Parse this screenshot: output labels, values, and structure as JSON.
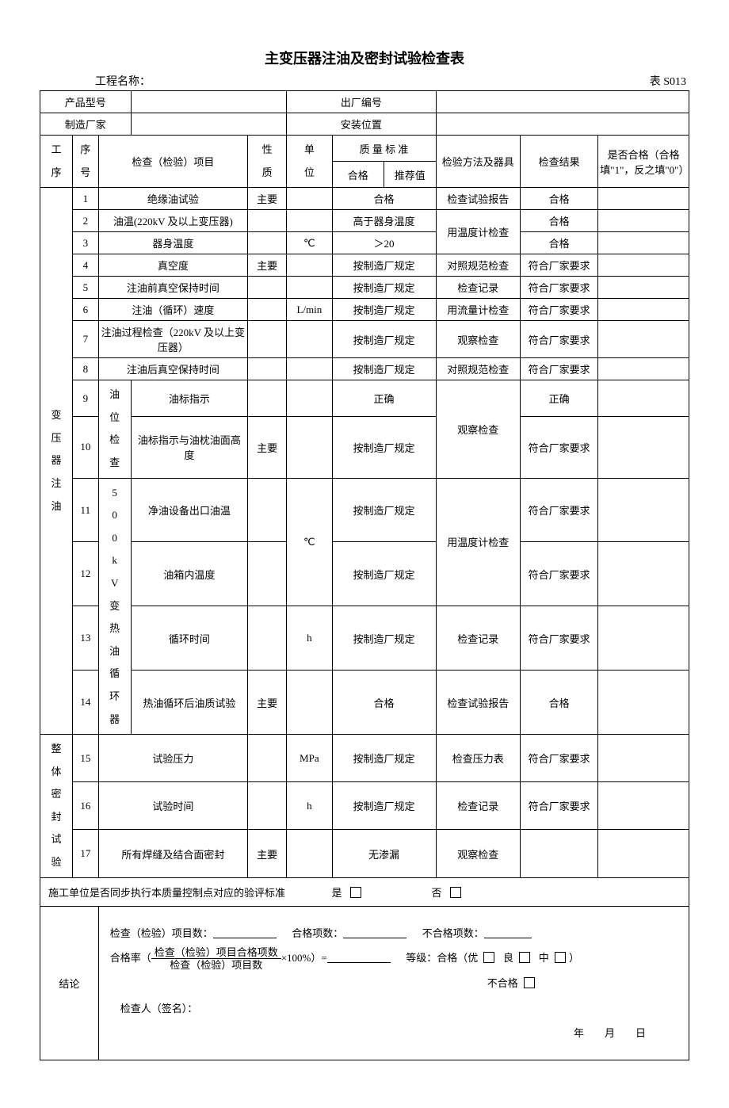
{
  "title": "主变压器注油及密封试验检查表",
  "meta": {
    "project_label": "工程名称：",
    "table_no": "表 S013"
  },
  "header": {
    "product_model": "产品型号",
    "factory_no": "出厂编号",
    "manufacturer": "制造厂家",
    "install_pos": "安装位置",
    "proc": "工序",
    "seq": "序号",
    "item": "检查（检验）项目",
    "nature": "性质",
    "unit": "单位",
    "std": "质 量 标 准",
    "std_pass": "合格",
    "std_rec": "推荐值",
    "method": "检验方法及器具",
    "result": "检查结果",
    "pass": "是否合格（合格填\"1\"，反之填\"0\"）"
  },
  "groups": {
    "g1": "变压器注油",
    "g2": "整体密封试验",
    "sub_oil": "油位检查",
    "sub_500": "500kV变热油循环器"
  },
  "rows": [
    {
      "n": "1",
      "item": "绝缘油试验",
      "nat": "主要",
      "unit": "",
      "std": "合格",
      "method": "检查试验报告",
      "res": "合格"
    },
    {
      "n": "2",
      "item": "油温(220kV 及以上变压器)",
      "nat": "",
      "unit": "",
      "std": "高于器身温度",
      "method": "用温度计检查",
      "res": "合格"
    },
    {
      "n": "3",
      "item": "器身温度",
      "nat": "",
      "unit": "℃",
      "std": "＞20",
      "method": "",
      "res": "合格"
    },
    {
      "n": "4",
      "item": "真空度",
      "nat": "主要",
      "unit": "",
      "std": "按制造厂规定",
      "method": "对照规范检查",
      "res": "符合厂家要求"
    },
    {
      "n": "5",
      "item": "注油前真空保持时间",
      "nat": "",
      "unit": "",
      "std": "按制造厂规定",
      "method": "检查记录",
      "res": "符合厂家要求"
    },
    {
      "n": "6",
      "item": "注油（循环）速度",
      "nat": "",
      "unit": "L/min",
      "std": "按制造厂规定",
      "method": "用流量计检查",
      "res": "符合厂家要求"
    },
    {
      "n": "7",
      "item": "注油过程检查（220kV 及以上变压器）",
      "nat": "",
      "unit": "",
      "std": "按制造厂规定",
      "method": "观察检查",
      "res": "符合厂家要求"
    },
    {
      "n": "8",
      "item": "注油后真空保持时间",
      "nat": "",
      "unit": "",
      "std": "按制造厂规定",
      "method": "对照规范检查",
      "res": "符合厂家要求"
    },
    {
      "n": "9",
      "item": "油标指示",
      "nat": "",
      "unit": "",
      "std": "正确",
      "method": "观察检查",
      "res": "正确"
    },
    {
      "n": "10",
      "item": "油标指示与油枕油面高度",
      "nat": "主要",
      "unit": "",
      "std": "按制造厂规定",
      "method": "",
      "res": "符合厂家要求"
    },
    {
      "n": "11",
      "item": "净油设备出口油温",
      "nat": "",
      "unit": "℃",
      "std": "按制造厂规定",
      "method": "用温度计检查",
      "res": "符合厂家要求"
    },
    {
      "n": "12",
      "item": "油箱内温度",
      "nat": "",
      "unit": "",
      "std": "按制造厂规定",
      "method": "",
      "res": "符合厂家要求"
    },
    {
      "n": "13",
      "item": "循环时间",
      "nat": "",
      "unit": "h",
      "std": "按制造厂规定",
      "method": "检查记录",
      "res": "符合厂家要求"
    },
    {
      "n": "14",
      "item": "热油循环后油质试验",
      "nat": "主要",
      "unit": "",
      "std": "合格",
      "method": "检查试验报告",
      "res": "合格"
    },
    {
      "n": "15",
      "item": "试验压力",
      "nat": "",
      "unit": "MPa",
      "std": "按制造厂规定",
      "method": "检查压力表",
      "res": "符合厂家要求"
    },
    {
      "n": "16",
      "item": "试验时间",
      "nat": "",
      "unit": "h",
      "std": "按制造厂规定",
      "method": "检查记录",
      "res": "符合厂家要求"
    },
    {
      "n": "17",
      "item": "所有焊缝及结合面密封",
      "nat": "主要",
      "unit": "",
      "std": "无渗漏",
      "method": "观察检查",
      "res": ""
    }
  ],
  "note": {
    "text": "施工单位是否同步执行本质量控制点对应的验评标准",
    "yes": "是",
    "no": "否"
  },
  "concl": {
    "label": "结论",
    "items_count": "检查（检验）项目数：",
    "pass_count": "合格项数：",
    "fail_count": "不合格项数：",
    "rate_prefix": "合格率（",
    "rate_num": "检查（检验）项目合格项数",
    "rate_den": "检查（检验）项目数",
    "rate_suffix": "×100%）=",
    "grade": "等级：合格（优",
    "good": "良",
    "mid": "中",
    "fail": "不合格",
    "inspector": "检查人（签名）：",
    "date": "年　　月　　日"
  }
}
